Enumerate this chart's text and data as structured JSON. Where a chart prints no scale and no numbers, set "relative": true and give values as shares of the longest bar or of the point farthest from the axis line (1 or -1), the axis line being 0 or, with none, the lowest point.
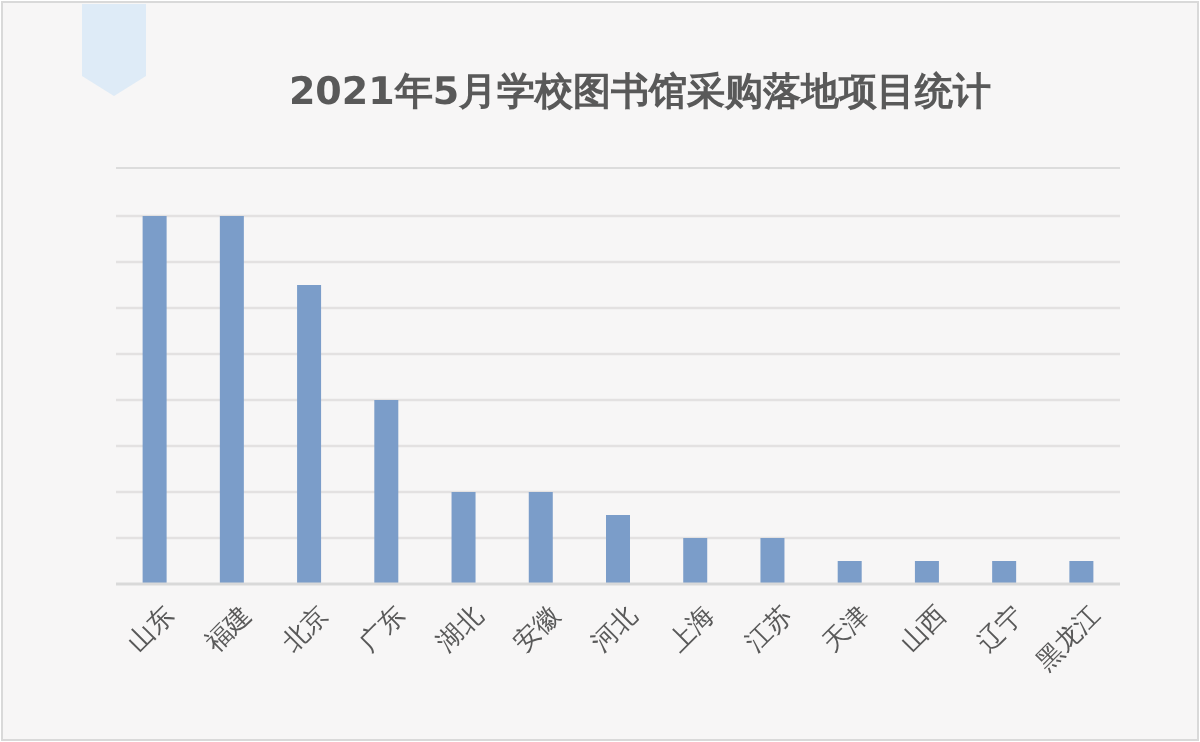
{
  "chart_data": {
    "type": "bar",
    "title": "2021年5月学校图书馆采购落地项目统计",
    "relative": true,
    "grid": "y",
    "categories": [
      "山东",
      "福建",
      "北京",
      "广东",
      "湖北",
      "安徽",
      "河北",
      "上海",
      "江苏",
      "天津",
      "山西",
      "辽宁",
      "黑龙江"
    ],
    "series": [
      {
        "color": "#7b9dc9",
        "values": [
          1,
          1,
          0.8125,
          0.5,
          0.25,
          0.25,
          0.1875,
          0.125,
          0.125,
          0.0625,
          0.0625,
          0.0625,
          0.0625
        ]
      }
    ]
  }
}
